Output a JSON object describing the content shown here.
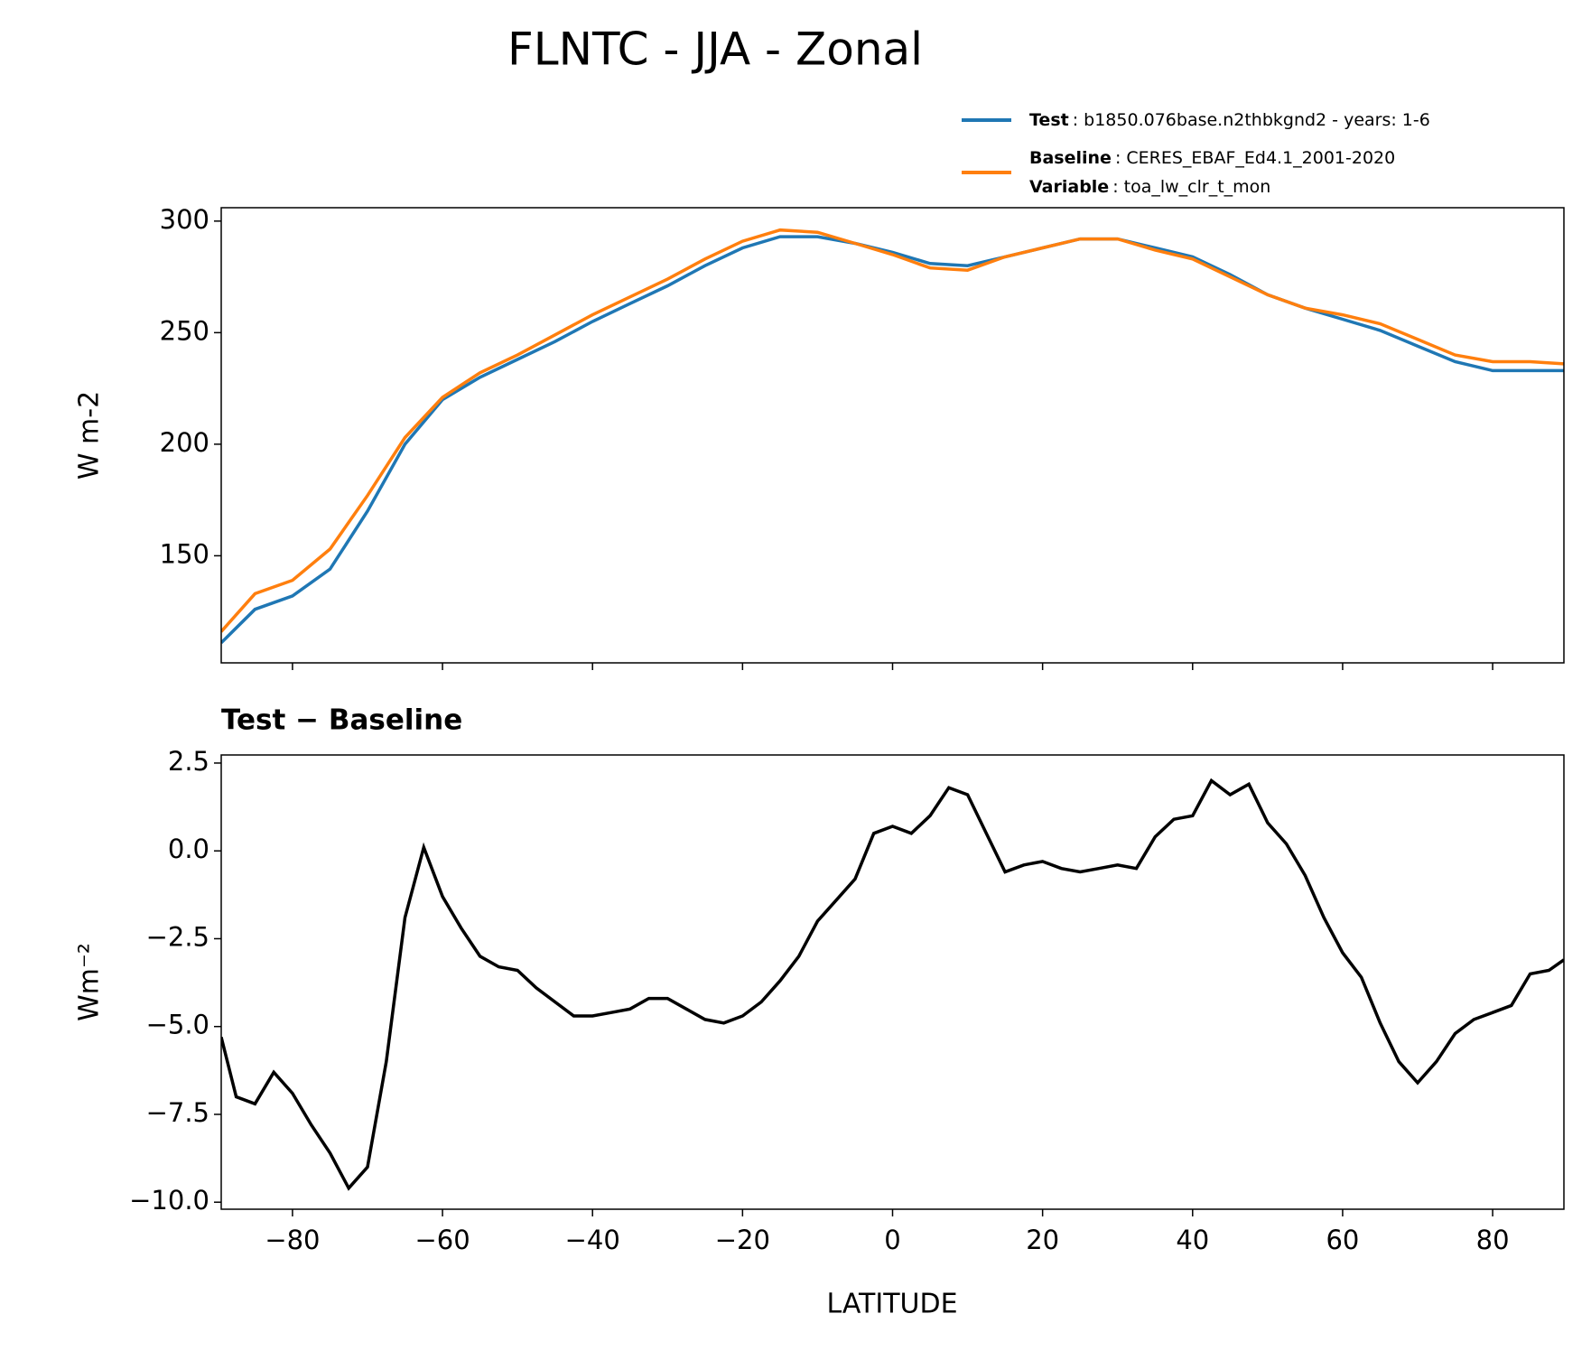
{
  "chart_data": [
    {
      "type": "line",
      "title": "FLNTC - JJA - Zonal",
      "y_label": "W m-2",
      "x": [
        -89.5,
        -85,
        -80,
        -75,
        -70,
        -65,
        -60,
        -55,
        -50,
        -45,
        -40,
        -35,
        -30,
        -25,
        -20,
        -15,
        -10,
        -5,
        0,
        5,
        10,
        15,
        20,
        25,
        30,
        35,
        40,
        45,
        50,
        55,
        60,
        65,
        70,
        75,
        80,
        85,
        89.5
      ],
      "series": [
        {
          "name": "Test",
          "description": ": b1850.076base.n2thbkgnd2 - years: 1-6",
          "color": "#1f77b4",
          "values": [
            111,
            126,
            132,
            144,
            170,
            200,
            220,
            230,
            238,
            246,
            255,
            263,
            271,
            280,
            288,
            293,
            293,
            290,
            286,
            281,
            280,
            284,
            288,
            292,
            292,
            288,
            284,
            276,
            267,
            261,
            256,
            251,
            244,
            237,
            233,
            233,
            233
          ]
        },
        {
          "name": "Baseline",
          "description": ": CERES_EBAF_Ed4.1_2001-2020",
          "color": "#ff7f0e",
          "values": [
            116,
            133,
            139,
            153,
            177,
            203,
            221,
            232,
            240,
            249,
            258,
            266,
            274,
            283,
            291,
            296,
            295,
            290,
            285,
            279,
            278,
            284,
            288,
            292,
            292,
            287,
            283,
            275,
            267,
            261,
            258,
            254,
            247,
            240,
            237,
            237,
            236
          ]
        }
      ],
      "legend_note": {
        "name": "Variable",
        "text": ": toa_lw_clr_t_mon"
      },
      "xlim": [
        -89.5,
        89.5
      ],
      "xticks": [
        -80,
        -60,
        -40,
        -20,
        0,
        20,
        40,
        60,
        80
      ],
      "xtick_labels": false,
      "ylim": [
        102,
        306
      ],
      "yticks": [
        150,
        200,
        250,
        300
      ]
    },
    {
      "type": "line",
      "subtitle": "Test − Baseline",
      "x_label": "LATITUDE",
      "y_label": "Wm⁻²",
      "x": [
        -89.5,
        -87.5,
        -85,
        -82.5,
        -80,
        -77.5,
        -75,
        -72.5,
        -70,
        -67.5,
        -65,
        -62.5,
        -60,
        -57.5,
        -55,
        -52.5,
        -50,
        -47.5,
        -45,
        -42.5,
        -40,
        -37.5,
        -35,
        -32.5,
        -30,
        -27.5,
        -25,
        -22.5,
        -20,
        -17.5,
        -15,
        -12.5,
        -10,
        -7.5,
        -5,
        -2.5,
        0,
        2.5,
        5,
        7.5,
        10,
        12.5,
        15,
        17.5,
        20,
        22.5,
        25,
        27.5,
        30,
        32.5,
        35,
        37.5,
        40,
        42.5,
        45,
        47.5,
        50,
        52.5,
        55,
        57.5,
        60,
        62.5,
        65,
        67.5,
        70,
        72.5,
        75,
        77.5,
        80,
        82.5,
        85,
        87.5,
        89.5
      ],
      "series": [
        {
          "color": "#000000",
          "values": [
            -5.3,
            -7.0,
            -7.2,
            -6.3,
            -6.9,
            -7.8,
            -8.6,
            -9.6,
            -9.0,
            -6.0,
            -1.9,
            0.1,
            -1.3,
            -2.2,
            -3.0,
            -3.3,
            -3.4,
            -3.9,
            -4.3,
            -4.7,
            -4.7,
            -4.6,
            -4.5,
            -4.2,
            -4.2,
            -4.5,
            -4.8,
            -4.9,
            -4.7,
            -4.3,
            -3.7,
            -3.0,
            -2.0,
            -1.4,
            -0.8,
            0.5,
            0.7,
            0.5,
            1.0,
            1.8,
            1.6,
            0.5,
            -0.6,
            -0.4,
            -0.3,
            -0.5,
            -0.6,
            -0.5,
            -0.4,
            -0.5,
            0.4,
            0.9,
            1.0,
            2.0,
            1.6,
            1.9,
            0.8,
            0.2,
            -0.7,
            -1.9,
            -2.9,
            -3.6,
            -4.9,
            -6.0,
            -6.6,
            -6.0,
            -5.2,
            -4.8,
            -4.6,
            -4.4,
            -3.5,
            -3.4,
            -3.1
          ]
        }
      ],
      "xlim": [
        -89.5,
        89.5
      ],
      "xticks": [
        {
          "value": -80,
          "label": "−80"
        },
        {
          "value": -60,
          "label": "−60"
        },
        {
          "value": -40,
          "label": "−40"
        },
        {
          "value": -20,
          "label": "−20"
        },
        0,
        20,
        40,
        60,
        80
      ],
      "ylim": [
        -10.2,
        2.73
      ],
      "yticks": [
        {
          "value": -10,
          "label": "−10.0"
        },
        {
          "value": -7.5,
          "label": "−7.5"
        },
        {
          "value": -5,
          "label": "−5.0"
        },
        {
          "value": -2.5,
          "label": "−2.5"
        },
        {
          "value": 0,
          "label": "0.0"
        },
        {
          "value": 2.5,
          "label": "2.5"
        }
      ]
    }
  ]
}
